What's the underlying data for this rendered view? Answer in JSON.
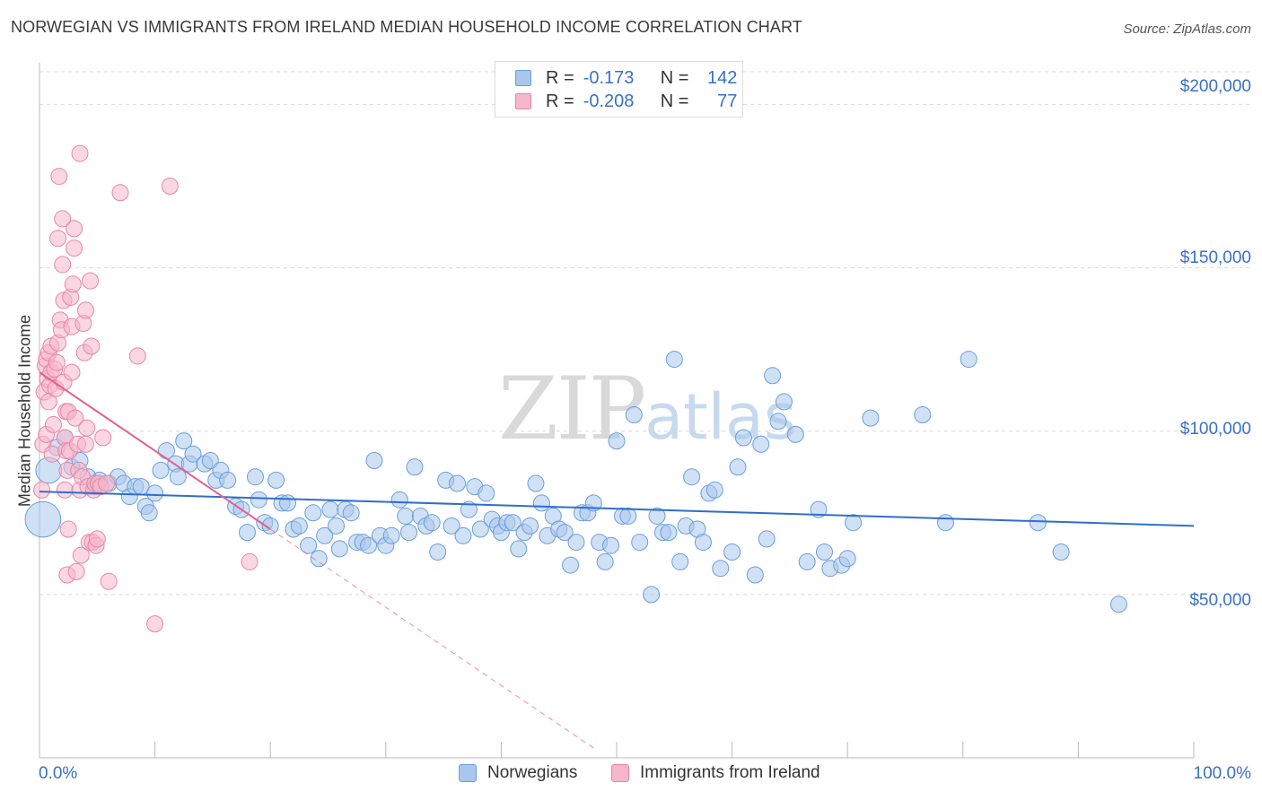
{
  "title": "NORWEGIAN VS IMMIGRANTS FROM IRELAND MEDIAN HOUSEHOLD INCOME CORRELATION CHART",
  "source": "Source: ZipAtlas.com",
  "watermark": {
    "a": "ZIP",
    "b": "atlas"
  },
  "legend_top": {
    "rows": [
      {
        "r_label": "R =",
        "r_value": "-0.173",
        "n_label": "N =",
        "n_value": "142"
      },
      {
        "r_label": "R =",
        "r_value": "-0.208",
        "n_label": "N =",
        "n_value": "77"
      }
    ]
  },
  "colors": {
    "blue_fill": "#a9c7ec",
    "blue_stroke": "#6a9fdb",
    "blue_line": "#2e6fcc",
    "pink_fill": "#f6b6cb",
    "pink_stroke": "#e985a8",
    "pink_line": "#e2608e",
    "grid": "#d9d9d9",
    "accent_text": "#3a70c7"
  },
  "chart_data": {
    "type": "scatter",
    "title": "NORWEGIAN VS IMMIGRANTS FROM IRELAND MEDIAN HOUSEHOLD INCOME CORRELATION CHART",
    "xlabel": "",
    "ylabel": "Median Household Income",
    "xlim": [
      0,
      100
    ],
    "ylim": [
      0,
      210000
    ],
    "x_tick_labels": [
      "0.0%",
      "100.0%"
    ],
    "y_ticks": [
      50000,
      100000,
      150000,
      200000
    ],
    "y_tick_labels": [
      "$50,000",
      "$100,000",
      "$150,000",
      "$200,000"
    ],
    "grid": true,
    "legend_placement": "bottom",
    "series": [
      {
        "name": "Norwegians",
        "r": -0.173,
        "n": 142,
        "trend": {
          "x0": 0,
          "y0": 81500,
          "x1": 100,
          "y1": 71000
        },
        "points": [
          [
            0.3,
            73000,
            2.2
          ],
          [
            0.8,
            88000,
            1.6
          ],
          [
            1.5,
            95000,
            1
          ],
          [
            2.2,
            98000,
            1
          ],
          [
            2.8,
            89000,
            1
          ],
          [
            3.5,
            91000,
            1
          ],
          [
            4.2,
            86000,
            1
          ],
          [
            4.8,
            83000,
            1
          ],
          [
            5.2,
            85000,
            1
          ],
          [
            6.0,
            84000,
            1
          ],
          [
            6.8,
            86000,
            1
          ],
          [
            7.3,
            84000,
            1
          ],
          [
            7.8,
            80000,
            1
          ],
          [
            8.3,
            83000,
            1
          ],
          [
            8.8,
            83000,
            1
          ],
          [
            9.2,
            77000,
            1
          ],
          [
            9.5,
            75000,
            1
          ],
          [
            10.0,
            81000,
            1
          ],
          [
            10.5,
            88000,
            1
          ],
          [
            11.0,
            94000,
            1
          ],
          [
            11.8,
            90000,
            1
          ],
          [
            12.0,
            86000,
            1
          ],
          [
            12.5,
            97000,
            1
          ],
          [
            13.0,
            90000,
            1
          ],
          [
            13.3,
            93000,
            1
          ],
          [
            14.3,
            90000,
            1
          ],
          [
            14.8,
            91000,
            1
          ],
          [
            15.3,
            85000,
            1
          ],
          [
            15.7,
            88000,
            1
          ],
          [
            16.3,
            85000,
            1
          ],
          [
            17.0,
            77000,
            1
          ],
          [
            17.5,
            76000,
            1
          ],
          [
            18.0,
            69000,
            1
          ],
          [
            18.7,
            86000,
            1
          ],
          [
            19.0,
            79000,
            1
          ],
          [
            19.5,
            72000,
            1
          ],
          [
            20.0,
            71000,
            1
          ],
          [
            20.5,
            85000,
            1
          ],
          [
            21.0,
            78000,
            1
          ],
          [
            21.5,
            78000,
            1
          ],
          [
            22.0,
            70000,
            1
          ],
          [
            22.5,
            71000,
            1
          ],
          [
            23.3,
            65000,
            1
          ],
          [
            23.7,
            75000,
            1
          ],
          [
            24.2,
            61000,
            1
          ],
          [
            24.7,
            68000,
            1
          ],
          [
            25.2,
            76000,
            1
          ],
          [
            25.7,
            71000,
            1
          ],
          [
            26.0,
            64000,
            1
          ],
          [
            26.5,
            76000,
            1
          ],
          [
            27.0,
            75000,
            1
          ],
          [
            27.5,
            66000,
            1
          ],
          [
            28.0,
            66000,
            1
          ],
          [
            28.5,
            65000,
            1
          ],
          [
            29.0,
            91000,
            1
          ],
          [
            29.5,
            68000,
            1
          ],
          [
            30.0,
            65000,
            1
          ],
          [
            30.5,
            68000,
            1
          ],
          [
            31.2,
            79000,
            1
          ],
          [
            31.7,
            74000,
            1
          ],
          [
            32.0,
            69000,
            1
          ],
          [
            32.5,
            89000,
            1
          ],
          [
            33.0,
            74000,
            1
          ],
          [
            33.5,
            71000,
            1
          ],
          [
            34.0,
            72000,
            1
          ],
          [
            34.5,
            63000,
            1
          ],
          [
            35.2,
            85000,
            1
          ],
          [
            35.7,
            71000,
            1
          ],
          [
            36.2,
            84000,
            1
          ],
          [
            36.7,
            68000,
            1
          ],
          [
            37.2,
            76000,
            1
          ],
          [
            37.7,
            83000,
            1
          ],
          [
            38.2,
            70000,
            1
          ],
          [
            38.7,
            81000,
            1
          ],
          [
            39.2,
            73000,
            1
          ],
          [
            39.7,
            71000,
            1
          ],
          [
            40.0,
            69000,
            1
          ],
          [
            40.5,
            72000,
            1
          ],
          [
            41.0,
            72000,
            1
          ],
          [
            41.5,
            64000,
            1
          ],
          [
            42.0,
            69000,
            1
          ],
          [
            42.5,
            71000,
            1
          ],
          [
            43.0,
            84000,
            1
          ],
          [
            43.5,
            78000,
            1
          ],
          [
            44.0,
            68000,
            1
          ],
          [
            44.5,
            74000,
            1
          ],
          [
            45.0,
            70000,
            1
          ],
          [
            45.5,
            69000,
            1
          ],
          [
            46.0,
            59000,
            1
          ],
          [
            46.5,
            66000,
            1
          ],
          [
            47.0,
            75000,
            1
          ],
          [
            47.5,
            75000,
            1
          ],
          [
            48.0,
            78000,
            1
          ],
          [
            48.5,
            66000,
            1
          ],
          [
            49.0,
            60000,
            1
          ],
          [
            49.5,
            65000,
            1
          ],
          [
            50.0,
            97000,
            1
          ],
          [
            50.5,
            74000,
            1
          ],
          [
            51.0,
            74000,
            1
          ],
          [
            51.5,
            105000,
            1
          ],
          [
            52.0,
            66000,
            1
          ],
          [
            53.0,
            50000,
            1
          ],
          [
            53.5,
            74000,
            1
          ],
          [
            54.0,
            69000,
            1
          ],
          [
            54.5,
            69000,
            1
          ],
          [
            55.0,
            122000,
            1
          ],
          [
            55.5,
            60000,
            1
          ],
          [
            56.0,
            71000,
            1
          ],
          [
            56.5,
            86000,
            1
          ],
          [
            57.0,
            70000,
            1
          ],
          [
            57.5,
            66000,
            1
          ],
          [
            58.0,
            81000,
            1
          ],
          [
            58.5,
            82000,
            1
          ],
          [
            59.0,
            58000,
            1
          ],
          [
            60.0,
            63000,
            1
          ],
          [
            60.5,
            89000,
            1
          ],
          [
            61.0,
            98000,
            1
          ],
          [
            62.0,
            56000,
            1
          ],
          [
            62.5,
            96000,
            1
          ],
          [
            63.0,
            67000,
            1
          ],
          [
            63.5,
            117000,
            1
          ],
          [
            64.0,
            103000,
            1
          ],
          [
            64.5,
            109000,
            1
          ],
          [
            65.5,
            99000,
            1
          ],
          [
            66.5,
            60000,
            1
          ],
          [
            67.5,
            76000,
            1
          ],
          [
            68.0,
            63000,
            1
          ],
          [
            68.5,
            58000,
            1
          ],
          [
            69.5,
            59000,
            1
          ],
          [
            70.0,
            61000,
            1
          ],
          [
            70.5,
            72000,
            1
          ],
          [
            72.0,
            104000,
            1
          ],
          [
            76.5,
            105000,
            1
          ],
          [
            78.5,
            72000,
            1
          ],
          [
            80.5,
            122000,
            1
          ],
          [
            86.5,
            72000,
            1
          ],
          [
            88.5,
            63000,
            1
          ],
          [
            93.5,
            47000,
            1
          ]
        ]
      },
      {
        "name": "Immigrants from Ireland",
        "r": -0.208,
        "n": 77,
        "trend": {
          "x0": 0,
          "y0": 118000,
          "x1": 20,
          "y1": 70000
        },
        "trend_dashed": {
          "x0": 20,
          "y0": 70000,
          "x1": 48,
          "y1": 3000
        },
        "points": [
          [
            0.2,
            82000,
            1
          ],
          [
            0.3,
            96000,
            1
          ],
          [
            0.4,
            112000,
            1
          ],
          [
            0.5,
            120000,
            1
          ],
          [
            0.6,
            99000,
            1
          ],
          [
            0.6,
            122000,
            1
          ],
          [
            0.7,
            116000,
            1
          ],
          [
            0.8,
            124000,
            1
          ],
          [
            0.8,
            109000,
            1
          ],
          [
            0.9,
            114000,
            1
          ],
          [
            1.0,
            126000,
            1
          ],
          [
            1.0,
            118000,
            1
          ],
          [
            1.1,
            93000,
            1
          ],
          [
            1.2,
            102000,
            1
          ],
          [
            1.3,
            119000,
            1
          ],
          [
            1.4,
            113000,
            1
          ],
          [
            1.5,
            121000,
            1
          ],
          [
            1.6,
            127000,
            1
          ],
          [
            1.6,
            159000,
            1
          ],
          [
            1.7,
            178000,
            1
          ],
          [
            1.8,
            134000,
            1
          ],
          [
            1.9,
            131000,
            1
          ],
          [
            2.0,
            165000,
            1
          ],
          [
            2.0,
            151000,
            1
          ],
          [
            2.1,
            140000,
            1
          ],
          [
            2.1,
            115000,
            1
          ],
          [
            2.2,
            98000,
            1
          ],
          [
            2.2,
            82000,
            1
          ],
          [
            2.3,
            106000,
            1
          ],
          [
            2.3,
            94000,
            1
          ],
          [
            2.4,
            88000,
            1
          ],
          [
            2.4,
            56000,
            1
          ],
          [
            2.5,
            70000,
            1
          ],
          [
            2.5,
            106000,
            1
          ],
          [
            2.6,
            94000,
            1
          ],
          [
            2.7,
            141000,
            1
          ],
          [
            2.8,
            132000,
            1
          ],
          [
            2.8,
            118000,
            1
          ],
          [
            2.9,
            145000,
            1
          ],
          [
            3.0,
            156000,
            1
          ],
          [
            3.0,
            162000,
            1
          ],
          [
            3.1,
            104000,
            1
          ],
          [
            3.2,
            57000,
            1
          ],
          [
            3.3,
            96000,
            1
          ],
          [
            3.4,
            88000,
            1
          ],
          [
            3.5,
            185000,
            1
          ],
          [
            3.5,
            82000,
            1
          ],
          [
            3.6,
            62000,
            1
          ],
          [
            3.7,
            86000,
            1
          ],
          [
            3.8,
            133000,
            1
          ],
          [
            3.9,
            124000,
            1
          ],
          [
            4.0,
            137000,
            1
          ],
          [
            4.0,
            96000,
            1
          ],
          [
            4.1,
            101000,
            1
          ],
          [
            4.2,
            83000,
            1
          ],
          [
            4.3,
            66000,
            1
          ],
          [
            4.4,
            146000,
            1
          ],
          [
            4.5,
            126000,
            1
          ],
          [
            4.6,
            66000,
            1
          ],
          [
            4.7,
            82000,
            1
          ],
          [
            4.8,
            84000,
            1
          ],
          [
            4.9,
            65000,
            1
          ],
          [
            5.0,
            67000,
            1
          ],
          [
            5.1,
            84000,
            1
          ],
          [
            5.3,
            83000,
            1
          ],
          [
            5.5,
            98000,
            1
          ],
          [
            5.8,
            84000,
            1
          ],
          [
            6.0,
            54000,
            1
          ],
          [
            7.0,
            173000,
            1
          ],
          [
            8.5,
            123000,
            1
          ],
          [
            10.0,
            41000,
            1
          ],
          [
            11.3,
            175000,
            1
          ],
          [
            18.2,
            60000,
            1
          ]
        ]
      }
    ]
  },
  "legend_bottom": [
    "Norwegians",
    "Immigrants from Ireland"
  ],
  "x_axis_labels": {
    "left": "0.0%",
    "right": "100.0%"
  },
  "y_axis_labels": [
    "$200,000",
    "$150,000",
    "$100,000",
    "$50,000"
  ]
}
